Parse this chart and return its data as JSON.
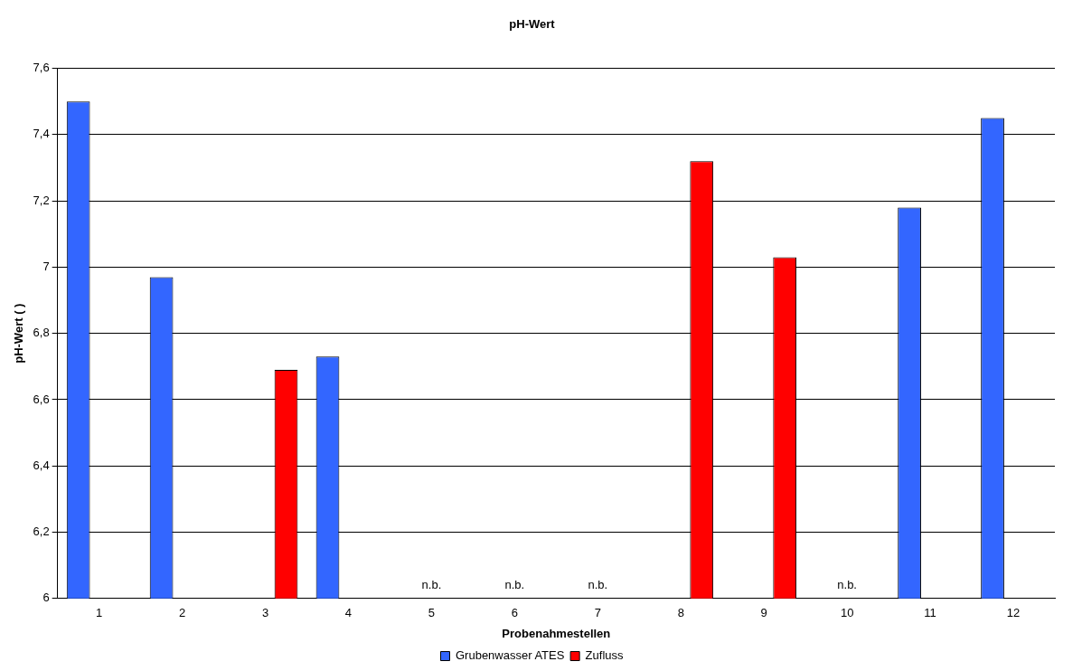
{
  "chart_data": {
    "type": "bar",
    "title": "pH-Wert",
    "xlabel": "Probenahmestellen",
    "ylabel": "pH-Wert ( )",
    "categories": [
      "1",
      "2",
      "3",
      "4",
      "5",
      "6",
      "7",
      "8",
      "9",
      "10",
      "11",
      "12"
    ],
    "series": [
      {
        "name": "Grubenwasser ATES",
        "color": "#3366ff",
        "values": [
          7.5,
          6.97,
          null,
          6.73,
          null,
          null,
          null,
          null,
          null,
          null,
          7.18,
          7.45
        ]
      },
      {
        "name": "Zufluss",
        "color": "#ff0000",
        "values": [
          null,
          null,
          6.69,
          null,
          null,
          null,
          null,
          7.32,
          7.03,
          null,
          null,
          null
        ]
      }
    ],
    "ylim": [
      6,
      7.6
    ],
    "yticks": [
      6,
      {
        "value": 6.2,
        "label": "6,2"
      },
      {
        "value": 6.4,
        "label": "6,4"
      },
      {
        "value": 6.6,
        "label": "6,6"
      },
      {
        "value": 6.8,
        "label": "6,8"
      },
      7,
      {
        "value": 7.2,
        "label": "7,2"
      },
      {
        "value": 7.4,
        "label": "7,4"
      },
      {
        "value": 7.6,
        "label": "7,6"
      }
    ],
    "annotations": [
      "n.b.",
      "n.b.",
      "n.b.",
      "n.b."
    ],
    "grid": "y",
    "legend": "bottom"
  }
}
